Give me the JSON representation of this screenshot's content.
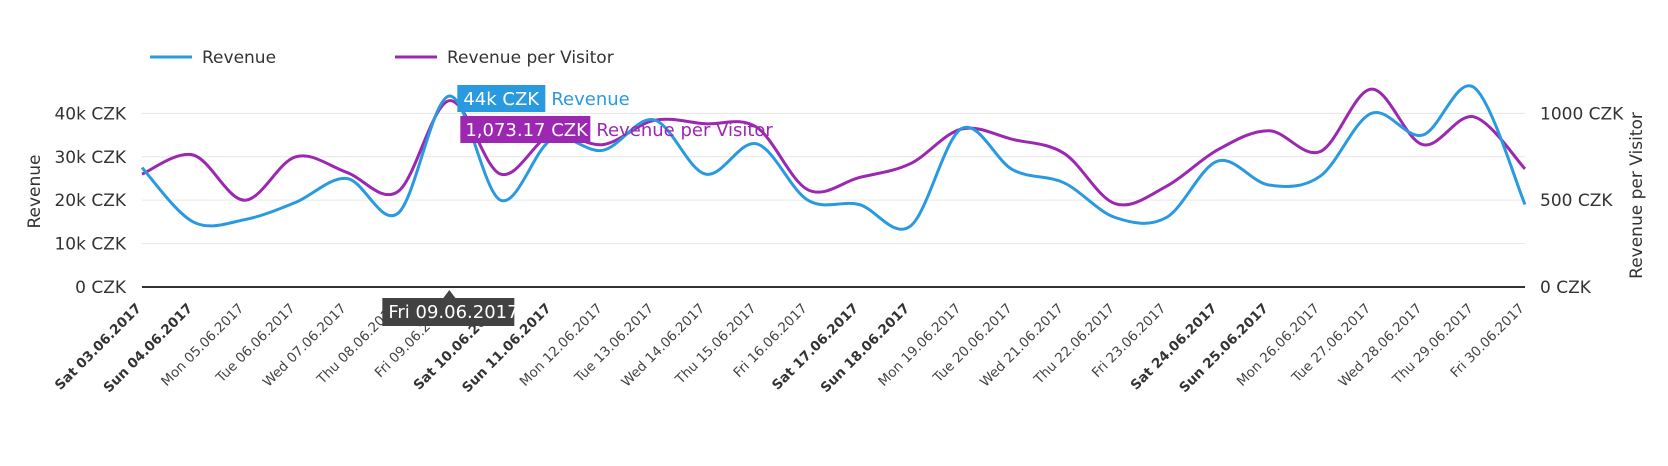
{
  "legend": {
    "revenue_label": "Revenue",
    "rpv_label": "Revenue per Visitor"
  },
  "colors": {
    "revenue": "#2a9ae0",
    "rpv": "#9c27b0",
    "axis": "#333333",
    "grid": "#e6e6e6",
    "crosshair_tooltip_bg": "#424242"
  },
  "tooltip": {
    "date": "Fri 09.06.2017",
    "revenue_value": "44k CZK",
    "revenue_name": "Revenue",
    "rpv_value": "1,073.17 CZK",
    "rpv_name": "Revenue per Visitor"
  },
  "chart_data": {
    "type": "line",
    "legend_position": "top-left",
    "grid": true,
    "categories": [
      "Sat 03.06.2017",
      "Sun 04.06.2017",
      "Mon 05.06.2017",
      "Tue 06.06.2017",
      "Wed 07.06.2017",
      "Thu 08.06.2017",
      "Fri 09.06.2017",
      "Sat 10.06.2017",
      "Sun 11.06.2017",
      "Mon 12.06.2017",
      "Tue 13.06.2017",
      "Wed 14.06.2017",
      "Thu 15.06.2017",
      "Fri 16.06.2017",
      "Sat 17.06.2017",
      "Sun 18.06.2017",
      "Mon 19.06.2017",
      "Tue 20.06.2017",
      "Wed 21.06.2017",
      "Thu 22.06.2017",
      "Fri 23.06.2017",
      "Sat 24.06.2017",
      "Sun 25.06.2017",
      "Mon 26.06.2017",
      "Tue 27.06.2017",
      "Wed 28.06.2017",
      "Thu 29.06.2017",
      "Fri 30.06.2017"
    ],
    "weekend": [
      true,
      true,
      false,
      false,
      false,
      false,
      false,
      true,
      true,
      false,
      false,
      false,
      false,
      false,
      true,
      true,
      false,
      false,
      false,
      false,
      false,
      true,
      true,
      false,
      false,
      false,
      false,
      false
    ],
    "left_axis": {
      "title": "Revenue",
      "min": 0,
      "max": 44000,
      "ticks": [
        0,
        10000,
        20000,
        30000,
        40000
      ],
      "tick_labels": [
        "0 CZK",
        "10k CZK",
        "20k CZK",
        "30k CZK",
        "40k CZK"
      ]
    },
    "right_axis": {
      "title": "Revenue per Visitor",
      "min": 0,
      "max": 1100,
      "ticks": [
        0,
        500,
        1000
      ],
      "tick_labels": [
        "0 CZK",
        "500 CZK",
        "1000 CZK"
      ]
    },
    "series": [
      {
        "name": "Revenue",
        "axis": "left",
        "values": [
          27500,
          15000,
          15500,
          19500,
          25000,
          17000,
          44000,
          20000,
          34000,
          31500,
          38500,
          26000,
          33000,
          20000,
          19000,
          14000,
          36500,
          27000,
          24000,
          16000,
          16000,
          29000,
          23500,
          25500,
          40000,
          35000,
          46000,
          19000
        ]
      },
      {
        "name": "Revenue per Visitor",
        "axis": "right",
        "values": [
          650,
          760,
          500,
          750,
          660,
          550,
          1073,
          650,
          880,
          820,
          960,
          940,
          920,
          560,
          630,
          710,
          910,
          850,
          770,
          480,
          580,
          790,
          900,
          780,
          1140,
          820,
          980,
          680
        ]
      }
    ]
  }
}
